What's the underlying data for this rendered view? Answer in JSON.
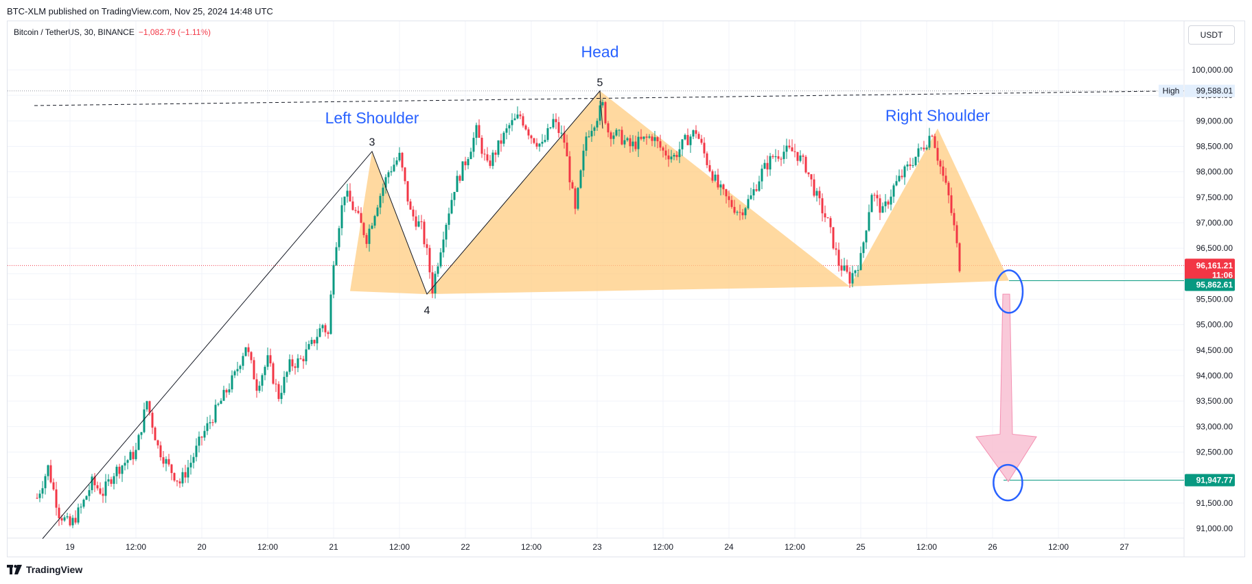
{
  "header": {
    "publish_line": "BTC-XLM published on TradingView.com, Nov 25, 2024 14:48 UTC"
  },
  "legend": {
    "symbol": "Bitcoin / TetherUS, 30, BINANCE",
    "change": "−1,082.79 (−1.11%)"
  },
  "currency_button": "USDT",
  "footer": {
    "brand": "TradingView"
  },
  "colors": {
    "up": "#089981",
    "down": "#f23645",
    "pattern_fill": "#ffcc80",
    "label_blue": "#2962ff",
    "arrow_fill": "#f8bbd0",
    "target_green": "#089981"
  },
  "chart_data": {
    "type": "candlestick",
    "y_unit": "USDT",
    "y_range": [
      90800,
      100700
    ],
    "x_range": [
      0,
      168
    ],
    "y_ticks": [
      "91,000.00",
      "91,500.00",
      "92,000.00",
      "92,500.00",
      "93,000.00",
      "93,500.00",
      "94,000.00",
      "94,500.00",
      "95,000.00",
      "95,500.00",
      "96,000.00",
      "96,500.00",
      "97,000.00",
      "97,500.00",
      "98,000.00",
      "98,500.00",
      "99,000.00",
      "99,500.00",
      "100,000.00"
    ],
    "y_tick_values": [
      91000,
      91500,
      92000,
      92500,
      93000,
      93500,
      94000,
      94500,
      95000,
      95500,
      96000,
      96500,
      97000,
      97500,
      98000,
      98500,
      99000,
      99500,
      100000
    ],
    "x_ticks": [
      {
        "label": "19",
        "t": 8
      },
      {
        "label": "12:00",
        "t": 20
      },
      {
        "label": "20",
        "t": 32
      },
      {
        "label": "12:00",
        "t": 44
      },
      {
        "label": "21",
        "t": 56
      },
      {
        "label": "12:00",
        "t": 68
      },
      {
        "label": "22",
        "t": 80
      },
      {
        "label": "12:00",
        "t": 92
      },
      {
        "label": "23",
        "t": 104
      },
      {
        "label": "12:00",
        "t": 116
      },
      {
        "label": "24",
        "t": 128
      },
      {
        "label": "12:00",
        "t": 140
      },
      {
        "label": "25",
        "t": 152
      },
      {
        "label": "12:00",
        "t": 164
      },
      {
        "label": "26",
        "t": 176
      },
      {
        "label": "12:00",
        "t": 188
      },
      {
        "label": "27",
        "t": 200
      }
    ],
    "x_domain_hours": [
      1.5,
      215
    ],
    "close_path": [
      [
        2,
        91600
      ],
      [
        4,
        92200
      ],
      [
        6,
        91300
      ],
      [
        8,
        91050
      ],
      [
        10,
        91400
      ],
      [
        12,
        91900
      ],
      [
        14,
        91700
      ],
      [
        16,
        92100
      ],
      [
        18,
        92300
      ],
      [
        20,
        92500
      ],
      [
        22,
        93500
      ],
      [
        24,
        92600
      ],
      [
        26,
        92200
      ],
      [
        28,
        91900
      ],
      [
        30,
        92300
      ],
      [
        32,
        92800
      ],
      [
        34,
        93200
      ],
      [
        36,
        93600
      ],
      [
        38,
        94000
      ],
      [
        40,
        94600
      ],
      [
        42,
        93800
      ],
      [
        44,
        94300
      ],
      [
        46,
        93600
      ],
      [
        48,
        94200
      ],
      [
        50,
        94300
      ],
      [
        52,
        94600
      ],
      [
        54,
        95000
      ],
      [
        55,
        94800
      ],
      [
        56,
        96300
      ],
      [
        57,
        97000
      ],
      [
        58,
        97600
      ],
      [
        60,
        97200
      ],
      [
        62,
        96700
      ],
      [
        64,
        97400
      ],
      [
        66,
        98000
      ],
      [
        68,
        98300
      ],
      [
        70,
        97200
      ],
      [
        72,
        96900
      ],
      [
        73,
        96400
      ],
      [
        74,
        95700
      ],
      [
        76,
        96800
      ],
      [
        78,
        97700
      ],
      [
        80,
        98200
      ],
      [
        82,
        98800
      ],
      [
        84,
        98100
      ],
      [
        86,
        98500
      ],
      [
        88,
        98900
      ],
      [
        90,
        99100
      ],
      [
        92,
        98700
      ],
      [
        94,
        98500
      ],
      [
        96,
        99000
      ],
      [
        98,
        98600
      ],
      [
        100,
        97200
      ],
      [
        102,
        98700
      ],
      [
        104,
        99100
      ],
      [
        105,
        99300
      ],
      [
        106,
        98800
      ],
      [
        108,
        98700
      ],
      [
        110,
        98500
      ],
      [
        112,
        98600
      ],
      [
        114,
        98700
      ],
      [
        116,
        98400
      ],
      [
        118,
        98300
      ],
      [
        120,
        98600
      ],
      [
        122,
        98800
      ],
      [
        124,
        98200
      ],
      [
        126,
        97700
      ],
      [
        128,
        97400
      ],
      [
        130,
        97200
      ],
      [
        132,
        97500
      ],
      [
        134,
        98000
      ],
      [
        136,
        98300
      ],
      [
        138,
        98400
      ],
      [
        140,
        98400
      ],
      [
        142,
        98100
      ],
      [
        144,
        97500
      ],
      [
        146,
        97000
      ],
      [
        148,
        96200
      ],
      [
        150,
        95900
      ],
      [
        152,
        96300
      ],
      [
        154,
        97600
      ],
      [
        156,
        97200
      ],
      [
        158,
        97700
      ],
      [
        160,
        98000
      ],
      [
        162,
        98300
      ],
      [
        164,
        98600
      ],
      [
        165,
        98800
      ],
      [
        166,
        98300
      ],
      [
        168,
        97500
      ],
      [
        169,
        96900
      ],
      [
        170,
        96161
      ]
    ],
    "pivots": [
      {
        "label": "3",
        "t": 63,
        "price": 98400
      },
      {
        "label": "4",
        "t": 73,
        "price": 95600
      },
      {
        "label": "5",
        "t": 104.5,
        "price": 99588
      },
      {
        "label": "neck-right",
        "t": 150,
        "price": 95750
      }
    ],
    "neckline": {
      "price_start": 95660,
      "price_end": 95862.61,
      "t_start": 59,
      "t_end": 179
    },
    "right_shoulder_peak": {
      "t": 166,
      "price": 98850
    },
    "high_line_price": 99588.01,
    "resistance_dashed": {
      "t_start": 1.5,
      "price_start": 99300,
      "t_end": 210,
      "price_end": 99588
    },
    "last_price": 96161.21,
    "neckline_target_price": 95862.61,
    "target_price": 91947.77,
    "annotations": {
      "left_shoulder": "Left Shoulder",
      "head": "Head",
      "right_shoulder": "Right Shoulder",
      "high_label": "High"
    },
    "price_tags": {
      "last": "96,161.21",
      "countdown": "11:06",
      "neckline": "95,862.61",
      "high": "99,588.01",
      "target": "91,947.77"
    },
    "pivot_labels": [
      "3",
      "4",
      "5"
    ]
  }
}
